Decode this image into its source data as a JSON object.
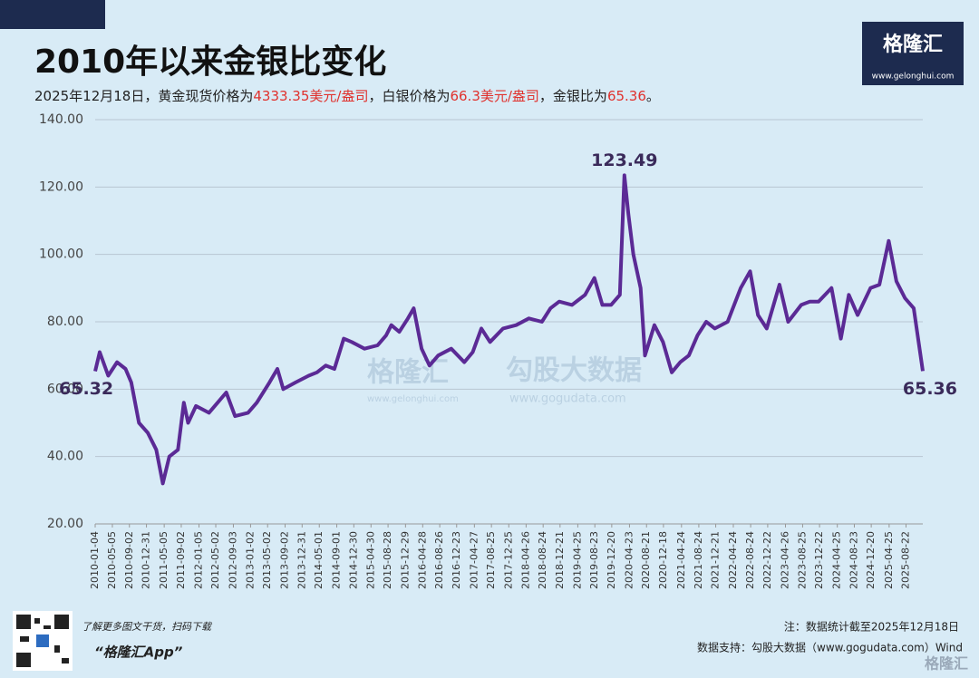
{
  "chart_data": {
    "type": "line",
    "title": "2010年以来金银比变化",
    "subtitle_parts": [
      {
        "text": "2025年12月18日，黄金现货价格为",
        "color": "#222222"
      },
      {
        "text": "4333.35美元/盎司",
        "color": "#e0312d"
      },
      {
        "text": "，白银价格为",
        "color": "#222222"
      },
      {
        "text": "66.3美元/盎司",
        "color": "#e0312d"
      },
      {
        "text": "，金银比为",
        "color": "#222222"
      },
      {
        "text": "65.36",
        "color": "#e0312d"
      },
      {
        "text": "。",
        "color": "#222222"
      }
    ],
    "x": [
      "2010-01-04",
      "2010-02-05",
      "2010-04-06",
      "2010-06-07",
      "2010-08-06",
      "2010-09-15",
      "2010-11-08",
      "2011-01-10",
      "2011-03-10",
      "2011-04-25",
      "2011-06-10",
      "2011-08-10",
      "2011-09-20",
      "2011-10-20",
      "2011-12-15",
      "2012-03-15",
      "2012-05-15",
      "2012-07-15",
      "2012-09-15",
      "2012-12-15",
      "2013-02-15",
      "2013-05-15",
      "2013-07-10",
      "2013-08-20",
      "2013-11-15",
      "2014-02-15",
      "2014-04-15",
      "2014-06-15",
      "2014-08-15",
      "2014-10-20",
      "2014-12-15",
      "2015-03-15",
      "2015-06-15",
      "2015-08-15",
      "2015-09-20",
      "2015-11-15",
      "2016-01-15",
      "2016-02-25",
      "2016-04-20",
      "2016-06-15",
      "2016-08-15",
      "2016-11-15",
      "2017-02-15",
      "2017-04-15",
      "2017-06-15",
      "2017-08-15",
      "2017-11-15",
      "2018-02-15",
      "2018-05-15",
      "2018-08-15",
      "2018-10-15",
      "2018-12-15",
      "2019-03-15",
      "2019-06-15",
      "2019-08-20",
      "2019-10-15",
      "2019-12-15",
      "2020-02-15",
      "2020-03-18",
      "2020-04-15",
      "2020-05-20",
      "2020-07-10",
      "2020-08-10",
      "2020-10-15",
      "2020-12-15",
      "2021-02-15",
      "2021-04-15",
      "2021-06-15",
      "2021-08-15",
      "2021-10-15",
      "2021-12-15",
      "2022-03-15",
      "2022-06-15",
      "2022-08-20",
      "2022-10-15",
      "2022-12-15",
      "2023-03-15",
      "2023-05-15",
      "2023-08-15",
      "2023-10-15",
      "2023-12-15",
      "2024-03-15",
      "2024-05-20",
      "2024-07-15",
      "2024-09-15",
      "2024-12-15",
      "2025-02-15",
      "2025-04-22",
      "2025-06-15",
      "2025-08-15",
      "2025-10-15",
      "2025-12-18"
    ],
    "series": [
      {
        "name": "金银比",
        "color": "#5b2a95",
        "values": [
          65.32,
          71,
          64,
          68,
          66,
          62,
          50,
          47,
          42,
          32,
          40,
          42,
          56,
          50,
          55,
          53,
          56,
          59,
          52,
          53,
          56,
          62,
          66,
          60,
          62,
          64,
          65,
          67,
          66,
          75,
          74,
          72,
          73,
          76,
          79,
          77,
          81,
          84,
          72,
          67,
          70,
          72,
          68,
          71,
          78,
          74,
          78,
          79,
          81,
          80,
          84,
          86,
          85,
          88,
          93,
          85,
          85,
          88,
          123.49,
          112,
          100,
          90,
          70,
          79,
          74,
          65,
          68,
          70,
          76,
          80,
          78,
          80,
          90,
          95,
          82,
          78,
          91,
          80,
          85,
          86,
          86,
          90,
          75,
          88,
          82,
          90,
          91,
          104,
          92,
          87,
          84,
          65.36
        ]
      }
    ],
    "annotations": [
      {
        "x": "2010-01-04",
        "y": 65.32
      },
      {
        "x": "2020-03-18",
        "y": 123.49
      },
      {
        "x": "2025-12-18",
        "y": 65.36
      }
    ],
    "xlim": [
      "2010-01-04",
      "2025-12-18"
    ],
    "xticks": [
      "2010-01-04",
      "2010-05-05",
      "2010-09-02",
      "2010-12-31",
      "2011-05-05",
      "2011-09-02",
      "2012-01-05",
      "2012-05-02",
      "2012-09-03",
      "2013-01-02",
      "2013-05-02",
      "2013-09-02",
      "2013-12-31",
      "2014-05-01",
      "2014-09-01",
      "2014-12-30",
      "2015-04-30",
      "2015-08-28",
      "2015-12-29",
      "2016-04-28",
      "2016-08-26",
      "2016-12-23",
      "2017-04-27",
      "2017-08-25",
      "2017-12-25",
      "2018-04-26",
      "2018-08-24",
      "2018-12-21",
      "2019-04-25",
      "2019-08-23",
      "2019-12-20",
      "2020-04-23",
      "2020-08-21",
      "2020-12-18",
      "2021-04-24",
      "2021-08-24",
      "2021-12-21",
      "2022-04-24",
      "2022-08-24",
      "2022-12-22",
      "2023-04-26",
      "2023-08-25",
      "2023-12-22",
      "2024-04-25",
      "2024-08-23",
      "2024-12-20",
      "2025-04-25",
      "2025-08-22"
    ],
    "ylim": [
      20,
      140
    ],
    "yticks": [
      {
        "value": 20,
        "label": "20.00"
      },
      {
        "value": 40,
        "label": "40.00"
      },
      {
        "value": 60,
        "label": "60.00"
      },
      {
        "value": 80,
        "label": "80.00"
      },
      {
        "value": 100,
        "label": "100.00"
      },
      {
        "value": 120,
        "label": "120.00"
      },
      {
        "value": 140,
        "label": "140.00"
      }
    ],
    "grid": true
  },
  "branding": {
    "logo": "格隆汇",
    "logo_url": "www.gelonghui.com",
    "watermark_left": "格隆汇",
    "watermark_left_url": "www.gelonghui.com",
    "watermark_right": "勾股大数据",
    "watermark_right_url": "www.gogudata.com",
    "bottom_logo": "格隆汇"
  },
  "footer": {
    "promo": "了解更多图文干货，扫码下载",
    "app": "“格隆汇App”",
    "note": "注：数据统计截至2025年12月18日",
    "source": "数据支持：勾股大数据（www.gogudata.com）Wind"
  }
}
